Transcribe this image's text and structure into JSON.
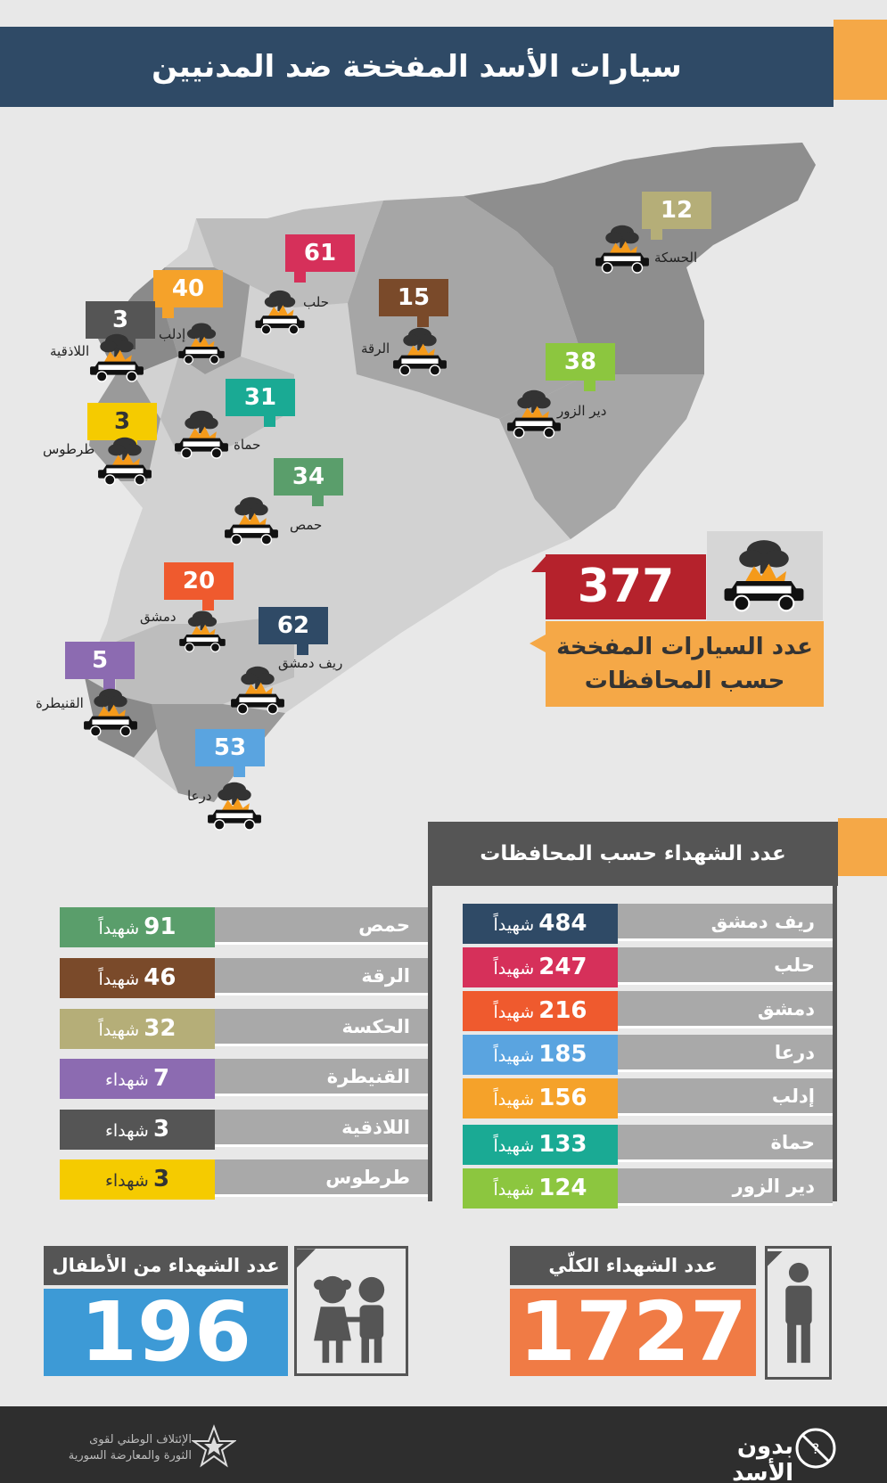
{
  "header": {
    "title": "سيارات الأسد المفخخة ضد المدنيين"
  },
  "map": {
    "callouts": [
      {
        "count": "12",
        "city": "الحسكة",
        "color": "#b5ae78"
      },
      {
        "count": "61",
        "city": "حلب",
        "color": "#d6305a"
      },
      {
        "count": "40",
        "city": "إدلب",
        "color": "#f5a22a"
      },
      {
        "count": "3",
        "city": "اللاذقية",
        "color": "#555555"
      },
      {
        "count": "15",
        "city": "الرقة",
        "color": "#7a4a2a"
      },
      {
        "count": "38",
        "city": "دير الزور",
        "color": "#8cc63f"
      },
      {
        "count": "3",
        "city": "طرطوس",
        "color": "#f5cb00"
      },
      {
        "count": "31",
        "city": "حماة",
        "color": "#1aaa94"
      },
      {
        "count": "34",
        "city": "حمص",
        "color": "#5a9e6b"
      },
      {
        "count": "20",
        "city": "دمشق",
        "color": "#ef5a2e"
      },
      {
        "count": "62",
        "city": "ريف دمشق",
        "color": "#2f4a66"
      },
      {
        "count": "5",
        "city": "القنيطرة",
        "color": "#8c6bb1"
      },
      {
        "count": "53",
        "city": "درعا",
        "color": "#5aa4e0"
      }
    ],
    "total_cars": "377",
    "total_label_line1": "عدد السيارات المفخخة",
    "total_label_line2": "حسب المحافظات"
  },
  "martyrs_table": {
    "title": "عدد الشهداء حسب المحافظات",
    "right_column": [
      {
        "name": "ريف دمشق",
        "count": "484",
        "unit": "شهيداً",
        "color": "#2f4a66"
      },
      {
        "name": "حلب",
        "count": "247",
        "unit": "شهيداً",
        "color": "#d6305a"
      },
      {
        "name": "دمشق",
        "count": "216",
        "unit": "شهيداً",
        "color": "#ef5a2e"
      },
      {
        "name": "درعا",
        "count": "185",
        "unit": "شهيداً",
        "color": "#5aa4e0"
      },
      {
        "name": "إدلب",
        "count": "156",
        "unit": "شهيداً",
        "color": "#f5a22a"
      },
      {
        "name": "حماة",
        "count": "133",
        "unit": "شهيداً",
        "color": "#1aaa94"
      },
      {
        "name": "دير الزور",
        "count": "124",
        "unit": "شهيداً",
        "color": "#8cc63f"
      }
    ],
    "left_column": [
      {
        "name": "حمص",
        "count": "91",
        "unit": "شهيداً",
        "color": "#5a9e6b"
      },
      {
        "name": "الرقة",
        "count": "46",
        "unit": "شهيداً",
        "color": "#7a4a2a"
      },
      {
        "name": "الحكسة",
        "count": "32",
        "unit": "شهيداً",
        "color": "#b5ae78"
      },
      {
        "name": "القنيطرة",
        "count": "7",
        "unit": "شهداء",
        "color": "#8c6bb1"
      },
      {
        "name": "اللاذقية",
        "count": "3",
        "unit": "شهداء",
        "color": "#555555"
      },
      {
        "name": "طرطوس",
        "count": "3",
        "unit": "شهداء",
        "color": "#f5cb00"
      }
    ]
  },
  "stats": {
    "children_label": "عدد الشهداء من الأطفال",
    "children_count": "196",
    "total_label": "عدد الشهداء الكلّي",
    "total_count": "1727"
  },
  "footer": {
    "org_line1": "الإئتلاف الوطني لقوى",
    "org_line2": "الثورة والمعارضة السورية",
    "brand": "بدون الأسد"
  }
}
